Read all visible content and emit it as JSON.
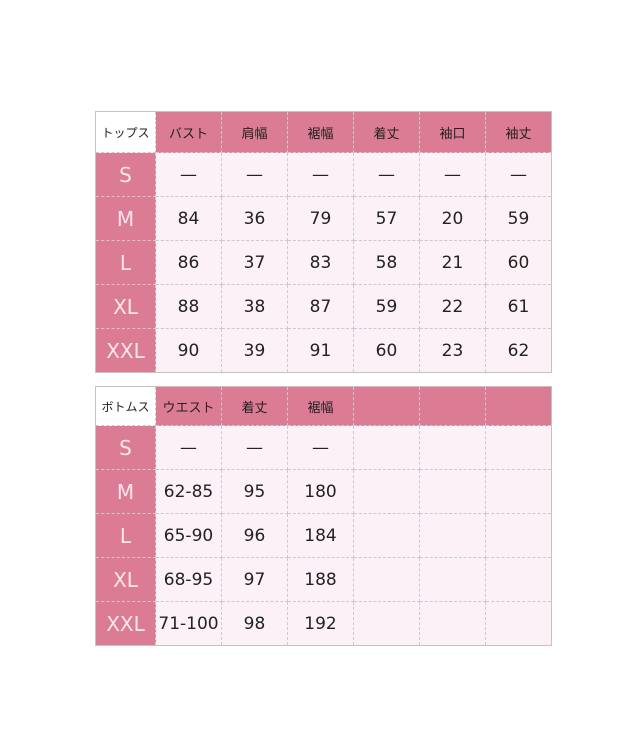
{
  "tops": {
    "corner": "トップス",
    "headers": [
      "バスト",
      "肩幅",
      "裾幅",
      "着丈",
      "袖口",
      "袖丈"
    ],
    "rows": [
      {
        "size": "S",
        "values": [
          "—",
          "—",
          "—",
          "—",
          "—",
          "—"
        ]
      },
      {
        "size": "M",
        "values": [
          "84",
          "36",
          "79",
          "57",
          "20",
          "59"
        ]
      },
      {
        "size": "L",
        "values": [
          "86",
          "37",
          "83",
          "58",
          "21",
          "60"
        ]
      },
      {
        "size": "XL",
        "values": [
          "88",
          "38",
          "87",
          "59",
          "22",
          "61"
        ]
      },
      {
        "size": "XXL",
        "values": [
          "90",
          "39",
          "91",
          "60",
          "23",
          "62"
        ]
      }
    ]
  },
  "bottoms": {
    "corner": "ボトムス",
    "headers": [
      "ウエスト",
      "着丈",
      "裾幅",
      "",
      "",
      ""
    ],
    "rows": [
      {
        "size": "S",
        "values": [
          "—",
          "—",
          "—",
          "",
          "",
          ""
        ]
      },
      {
        "size": "M",
        "values": [
          "62-85",
          "95",
          "180",
          "",
          "",
          ""
        ]
      },
      {
        "size": "L",
        "values": [
          "65-90",
          "96",
          "184",
          "",
          "",
          ""
        ]
      },
      {
        "size": "XL",
        "values": [
          "68-95",
          "97",
          "188",
          "",
          "",
          ""
        ]
      },
      {
        "size": "XXL",
        "values": [
          "71-100",
          "98",
          "192",
          "",
          "",
          ""
        ]
      }
    ]
  },
  "colors": {
    "header": "#dc7c94",
    "cell": "#fbf1f6"
  }
}
